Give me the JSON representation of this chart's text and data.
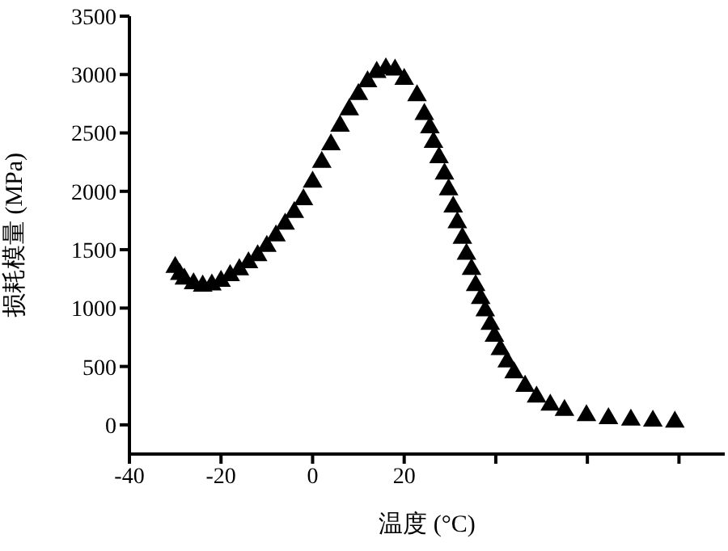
{
  "chart_data": {
    "type": "scatter",
    "xlabel": "温度 (°C)",
    "ylabel": "损耗模量 (MPa)",
    "xlim": [
      -40,
      90
    ],
    "xticks": [
      -40,
      -20,
      0,
      20,
      {
        "value": 40,
        "label": null
      },
      {
        "value": 60,
        "label": null
      },
      {
        "value": 80,
        "label": null
      }
    ],
    "ylim": [
      -250,
      3500
    ],
    "yticks": [
      0,
      500,
      1000,
      1500,
      2000,
      2500,
      3000,
      3500
    ],
    "marker": "triangle",
    "grid": false,
    "legend": false,
    "series": [
      {
        "color": "#000000",
        "x": [
          -30,
          -29,
          -28,
          -26,
          -24,
          -22,
          -20,
          -18,
          -16,
          -14,
          -12,
          -10,
          -8,
          -6,
          -4,
          -2,
          0,
          2,
          4,
          6,
          8,
          10,
          12,
          14,
          16,
          18,
          20,
          22.8,
          24.4,
          25.6,
          26.4,
          27.6,
          28.8,
          29.7,
          30.7,
          31.6,
          32.7,
          33.6,
          34.7,
          35.6,
          36.7,
          37.7,
          38.8,
          39.7,
          41,
          42.5,
          44,
          46.4,
          48.9,
          51.9,
          55,
          59.8,
          64.6,
          69.5,
          74.3,
          79.1
        ],
        "values": [
          1350,
          1290,
          1250,
          1210,
          1190,
          1200,
          1230,
          1280,
          1330,
          1390,
          1450,
          1530,
          1620,
          1720,
          1820,
          1930,
          2080,
          2250,
          2400,
          2560,
          2700,
          2830,
          2940,
          3020,
          3050,
          3040,
          2960,
          2820,
          2660,
          2545,
          2420,
          2290,
          2150,
          2015,
          1867,
          1733,
          1600,
          1462,
          1332,
          1194,
          1083,
          978,
          862,
          761,
          646,
          540,
          447,
          332,
          240,
          170,
          125,
          80,
          55,
          42,
          33,
          25
        ]
      }
    ]
  }
}
